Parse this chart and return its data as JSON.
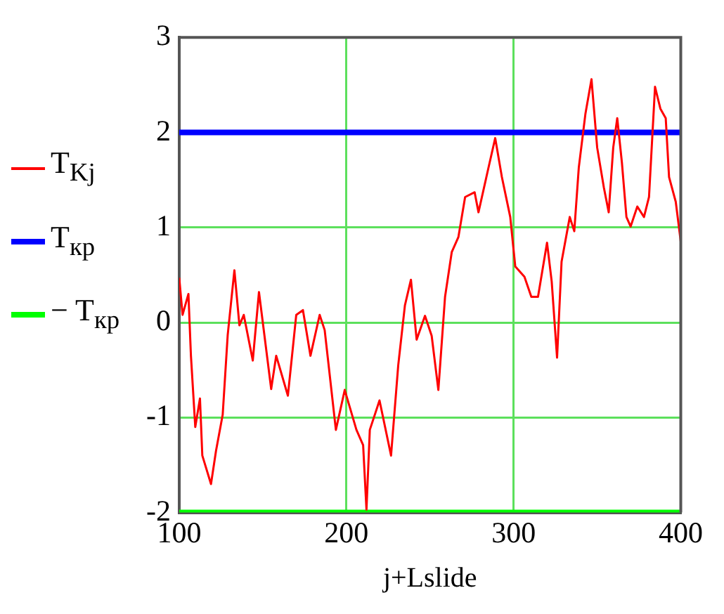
{
  "chart_data": {
    "type": "line",
    "xlabel": "j+Lslide",
    "xlim": [
      100,
      400
    ],
    "xticks": [
      100,
      200,
      300,
      400
    ],
    "ylim": [
      -2,
      3
    ],
    "yticks": [
      -2,
      -1,
      0,
      1,
      2,
      3
    ],
    "grid": true,
    "legend": "left",
    "marker": "none",
    "line_style": "solid",
    "series": [
      {
        "name": "T$_{Kj}$",
        "color": "#ff0000",
        "x": [
          100,
          102,
          105.5,
          107,
          109.6,
          112.4,
          113.8,
          119,
          122,
          126,
          129,
          133,
          136,
          138.6,
          144,
          147.7,
          155,
          158,
          165,
          170,
          174,
          178.5,
          184,
          187,
          193.7,
          199,
          206,
          210,
          212,
          214,
          219.8,
          226.7,
          231,
          235,
          238.6,
          242,
          247,
          251,
          255,
          259,
          263,
          267,
          271,
          276.7,
          279,
          285,
          289,
          293,
          298,
          301,
          306.5,
          310.6,
          314.6,
          320,
          322.8,
          326,
          328.7,
          333.6,
          336.3,
          339,
          343,
          346.6,
          350,
          354,
          356.9,
          359.6,
          362,
          364.8,
          367.5,
          370,
          374,
          378,
          381,
          384.6,
          387.8,
          391,
          393,
          397,
          400
        ],
        "values": [
          0.47,
          0.08,
          0.3,
          -0.35,
          -1.1,
          -0.8,
          -1.4,
          -1.7,
          -1.35,
          -0.97,
          -0.13,
          0.55,
          -0.03,
          0.08,
          -0.4,
          0.32,
          -0.7,
          -0.35,
          -0.77,
          0.08,
          0.13,
          -0.35,
          0.08,
          -0.08,
          -1.13,
          -0.71,
          -1.13,
          -1.29,
          -1.97,
          -1.13,
          -0.82,
          -1.4,
          -0.45,
          0.18,
          0.45,
          -0.18,
          0.07,
          -0.14,
          -0.71,
          0.27,
          0.74,
          0.9,
          1.32,
          1.37,
          1.16,
          1.63,
          1.94,
          1.53,
          1.11,
          0.59,
          0.48,
          0.27,
          0.27,
          0.84,
          0.43,
          -0.37,
          0.64,
          1.11,
          0.96,
          1.63,
          2.2,
          2.56,
          1.84,
          1.42,
          1.16,
          1.84,
          2.15,
          1.68,
          1.11,
          1.01,
          1.22,
          1.11,
          1.32,
          2.48,
          2.25,
          2.15,
          1.53,
          1.27,
          0.85
        ]
      },
      {
        "name": "T$_{кр}$",
        "color": "#0000ff",
        "x": [
          100,
          400
        ],
        "values": [
          2,
          2
        ]
      },
      {
        "name": "− T$_{кр}$",
        "color": "#00ff00",
        "x": [
          100,
          400
        ],
        "values": [
          -2,
          -2
        ]
      }
    ]
  }
}
